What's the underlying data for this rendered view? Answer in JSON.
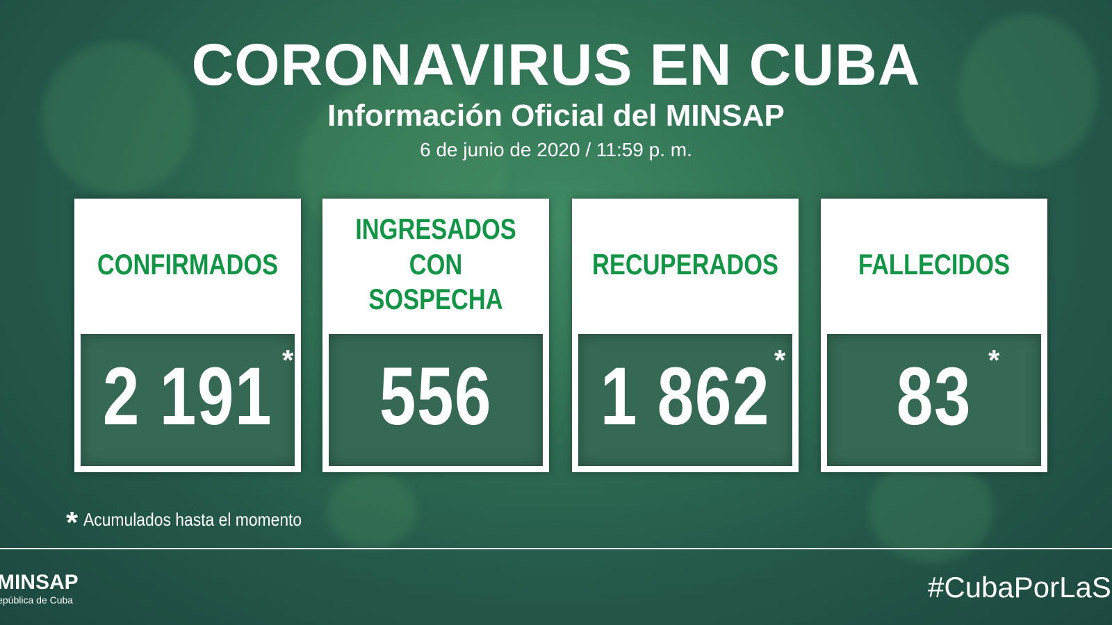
{
  "header": {
    "title": "CORONAVIRUS EN CUBA",
    "subtitle": "Información Oficial del MINSAP",
    "date": "6 de junio de 2020 / 11:59 p. m."
  },
  "cards": [
    {
      "label": "CONFIRMADOS",
      "value": "2 191",
      "marker": "*"
    },
    {
      "label": "INGRESADOS CON SOSPECHA",
      "value": "556"
    },
    {
      "label": "RECUPERADOS",
      "value": "1 862",
      "marker": "*"
    },
    {
      "label": "FALLECIDOS",
      "value": "83",
      "marker": "*"
    }
  ],
  "note": {
    "marker": "*",
    "text": "Acumulados hasta el momento"
  },
  "footer": {
    "logo": "MINSAP",
    "logo_subtitle": "República de Cuba",
    "hashtag": "#CubaPorLaSalud"
  }
}
